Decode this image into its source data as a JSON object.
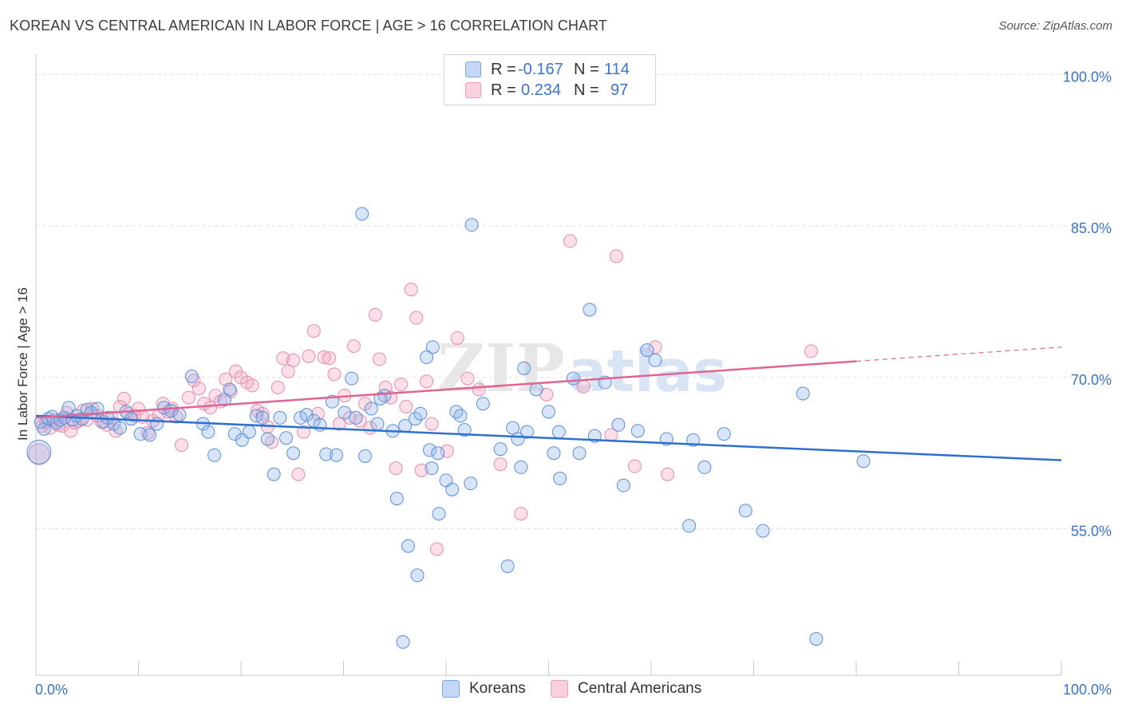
{
  "header": {
    "title": "KOREAN VS CENTRAL AMERICAN IN LABOR FORCE | AGE > 16 CORRELATION CHART",
    "source": "Source: ZipAtlas.com"
  },
  "watermark": {
    "text_zip": "ZIP",
    "text_atlas": "atlas"
  },
  "legend": {
    "items": [
      {
        "r_label": "R =",
        "r_value": "-0.167",
        "n_label": "N =",
        "n_value": "114",
        "color": "#8fb4ec"
      },
      {
        "r_label": "R =",
        "r_value": "0.234",
        "n_label": "N =",
        "n_value": "97",
        "color": "#f4a7bf"
      }
    ]
  },
  "bottom_legend": {
    "koreans": "Koreans",
    "central_americans": "Central Americans"
  },
  "axes": {
    "ylabel": "In Labor Force | Age > 16",
    "x_min_label": "0.0%",
    "x_max_label": "100.0%",
    "y_tick_labels": [
      "100.0%",
      "85.0%",
      "70.0%",
      "55.0%"
    ]
  },
  "chart_data": {
    "type": "scatter",
    "title": "KOREAN VS CENTRAL AMERICAN IN LABOR FORCE | AGE > 16 CORRELATION CHART",
    "xlabel": "",
    "ylabel": "In Labor Force | Age > 16",
    "xlim": [
      0,
      100
    ],
    "ylim": [
      40.5,
      102
    ],
    "y_ticks": [
      55,
      70,
      85,
      100
    ],
    "x_ticks": [
      0,
      10,
      20,
      30,
      40,
      50,
      60,
      70,
      80,
      90,
      100
    ],
    "grid": "horizontal dashed",
    "legend_position": "top-center",
    "series": [
      {
        "name": "Koreans",
        "color": "#8fb4ec",
        "stroke": "#5b8fdb",
        "line_color": "#2f6fcf",
        "R": -0.167,
        "N": 114,
        "trend": {
          "x": [
            0,
            100
          ],
          "y": [
            66.2,
            61.8
          ],
          "dashed_from": null
        },
        "points": [
          [
            0.5,
            65.6
          ],
          [
            0.8,
            64.9
          ],
          [
            1.2,
            65.9
          ],
          [
            1.6,
            66.1
          ],
          [
            2.0,
            65.5
          ],
          [
            2.4,
            65.8
          ],
          [
            2.8,
            66.0
          ],
          [
            3.2,
            67.0
          ],
          [
            3.6,
            65.8
          ],
          [
            4.0,
            66.2
          ],
          [
            4.5,
            65.9
          ],
          [
            5.0,
            66.8
          ],
          [
            5.4,
            66.5
          ],
          [
            6.0,
            66.9
          ],
          [
            6.6,
            65.6
          ],
          [
            7.0,
            66.0
          ],
          [
            7.6,
            65.4
          ],
          [
            8.2,
            65.0
          ],
          [
            8.8,
            66.6
          ],
          [
            9.3,
            65.9
          ],
          [
            10.2,
            64.4
          ],
          [
            11.1,
            64.3
          ],
          [
            11.8,
            65.4
          ],
          [
            12.5,
            67.0
          ],
          [
            13.2,
            66.7
          ],
          [
            14.0,
            66.3
          ],
          [
            15.2,
            70.1
          ],
          [
            16.3,
            65.4
          ],
          [
            16.8,
            64.6
          ],
          [
            17.4,
            62.3
          ],
          [
            18.4,
            67.8
          ],
          [
            18.9,
            68.8
          ],
          [
            19.4,
            64.4
          ],
          [
            20.1,
            63.8
          ],
          [
            20.8,
            64.6
          ],
          [
            21.5,
            66.2
          ],
          [
            22.1,
            66.0
          ],
          [
            22.6,
            63.9
          ],
          [
            23.2,
            60.4
          ],
          [
            23.8,
            66.0
          ],
          [
            24.4,
            64.0
          ],
          [
            25.1,
            62.5
          ],
          [
            25.8,
            66.0
          ],
          [
            26.4,
            66.3
          ],
          [
            27.1,
            65.7
          ],
          [
            27.7,
            65.3
          ],
          [
            28.3,
            62.4
          ],
          [
            28.9,
            67.6
          ],
          [
            29.3,
            62.3
          ],
          [
            30.1,
            66.5
          ],
          [
            30.8,
            69.9
          ],
          [
            31.2,
            66.0
          ],
          [
            32.1,
            62.2
          ],
          [
            32.7,
            66.9
          ],
          [
            33.3,
            65.4
          ],
          [
            31.8,
            86.2
          ],
          [
            34.0,
            68.2
          ],
          [
            33.6,
            67.9
          ],
          [
            34.8,
            64.7
          ],
          [
            35.2,
            58.0
          ],
          [
            36.0,
            65.2
          ],
          [
            37.0,
            65.9
          ],
          [
            37.5,
            66.4
          ],
          [
            36.3,
            53.3
          ],
          [
            35.8,
            43.8
          ],
          [
            37.2,
            50.4
          ],
          [
            38.7,
            73.0
          ],
          [
            38.1,
            72.0
          ],
          [
            38.4,
            62.8
          ],
          [
            39.2,
            62.5
          ],
          [
            38.6,
            61.0
          ],
          [
            39.3,
            56.5
          ],
          [
            40.0,
            59.8
          ],
          [
            40.6,
            58.9
          ],
          [
            41.0,
            66.6
          ],
          [
            41.4,
            66.2
          ],
          [
            41.8,
            64.8
          ],
          [
            42.4,
            59.5
          ],
          [
            42.5,
            85.1
          ],
          [
            43.6,
            67.4
          ],
          [
            45.3,
            62.9
          ],
          [
            46.0,
            51.3
          ],
          [
            46.5,
            65.0
          ],
          [
            47.0,
            63.9
          ],
          [
            47.9,
            64.6
          ],
          [
            47.3,
            61.1
          ],
          [
            47.6,
            70.9
          ],
          [
            48.8,
            68.8
          ],
          [
            50.5,
            62.5
          ],
          [
            50.0,
            66.6
          ],
          [
            51.0,
            64.6
          ],
          [
            51.1,
            60.0
          ],
          [
            52.4,
            69.9
          ],
          [
            53.0,
            62.5
          ],
          [
            54.0,
            76.7
          ],
          [
            54.5,
            64.2
          ],
          [
            55.5,
            69.5
          ],
          [
            56.8,
            65.3
          ],
          [
            57.3,
            59.3
          ],
          [
            58.7,
            64.7
          ],
          [
            59.6,
            72.7
          ],
          [
            60.4,
            71.7
          ],
          [
            61.5,
            63.9
          ],
          [
            63.7,
            55.3
          ],
          [
            64.1,
            63.8
          ],
          [
            65.2,
            61.1
          ],
          [
            67.1,
            64.4
          ],
          [
            69.2,
            56.8
          ],
          [
            70.9,
            54.8
          ],
          [
            74.8,
            68.4
          ],
          [
            76.1,
            44.1
          ],
          [
            80.7,
            61.7
          ]
        ]
      },
      {
        "name": "Central Americans",
        "color": "#f4a7bf",
        "stroke": "#e98aab",
        "line_color": "#e06592",
        "R": 0.234,
        "N": 97,
        "trend": {
          "x": [
            0,
            100
          ],
          "y": [
            66.0,
            73.0
          ],
          "dashed_from": 80
        },
        "points": [
          [
            0.6,
            65.2
          ],
          [
            1.0,
            65.6
          ],
          [
            1.4,
            65.0
          ],
          [
            1.8,
            65.8
          ],
          [
            2.2,
            65.3
          ],
          [
            2.6,
            65.2
          ],
          [
            3.0,
            66.5
          ],
          [
            3.4,
            64.7
          ],
          [
            3.8,
            65.5
          ],
          [
            4.2,
            65.7
          ],
          [
            4.6,
            66.7
          ],
          [
            5.0,
            65.8
          ],
          [
            5.5,
            66.9
          ],
          [
            6.0,
            66.2
          ],
          [
            6.4,
            65.6
          ],
          [
            6.9,
            65.3
          ],
          [
            7.4,
            66.0
          ],
          [
            7.8,
            64.7
          ],
          [
            8.2,
            67.1
          ],
          [
            8.6,
            67.9
          ],
          [
            9.0,
            66.4
          ],
          [
            9.6,
            66.2
          ],
          [
            10.0,
            66.9
          ],
          [
            10.4,
            66.1
          ],
          [
            10.9,
            64.5
          ],
          [
            11.4,
            65.7
          ],
          [
            12.0,
            66.3
          ],
          [
            12.4,
            67.4
          ],
          [
            12.9,
            66.6
          ],
          [
            13.3,
            66.9
          ],
          [
            13.7,
            66.1
          ],
          [
            14.2,
            63.3
          ],
          [
            14.9,
            68.0
          ],
          [
            15.4,
            69.7
          ],
          [
            15.9,
            68.9
          ],
          [
            16.4,
            67.4
          ],
          [
            17.0,
            67.0
          ],
          [
            17.5,
            68.2
          ],
          [
            18.0,
            67.6
          ],
          [
            18.5,
            69.8
          ],
          [
            19.0,
            68.6
          ],
          [
            19.5,
            70.6
          ],
          [
            20.0,
            70.0
          ],
          [
            20.6,
            69.5
          ],
          [
            21.1,
            69.2
          ],
          [
            21.6,
            66.7
          ],
          [
            22.1,
            66.4
          ],
          [
            22.6,
            65.1
          ],
          [
            23.0,
            63.6
          ],
          [
            23.6,
            69.0
          ],
          [
            24.1,
            71.9
          ],
          [
            24.6,
            70.6
          ],
          [
            25.1,
            71.7
          ],
          [
            25.6,
            60.4
          ],
          [
            26.1,
            64.6
          ],
          [
            26.6,
            72.1
          ],
          [
            27.1,
            74.6
          ],
          [
            27.5,
            66.4
          ],
          [
            28.1,
            72.0
          ],
          [
            28.6,
            71.9
          ],
          [
            29.1,
            70.3
          ],
          [
            29.6,
            65.4
          ],
          [
            30.1,
            68.2
          ],
          [
            30.6,
            66.0
          ],
          [
            31.0,
            73.1
          ],
          [
            31.6,
            65.7
          ],
          [
            32.1,
            67.4
          ],
          [
            32.6,
            65.0
          ],
          [
            33.1,
            76.2
          ],
          [
            33.5,
            71.8
          ],
          [
            34.1,
            69.0
          ],
          [
            34.6,
            68.0
          ],
          [
            35.1,
            61.0
          ],
          [
            35.6,
            69.3
          ],
          [
            36.1,
            67.1
          ],
          [
            36.6,
            78.7
          ],
          [
            37.1,
            75.9
          ],
          [
            37.6,
            60.8
          ],
          [
            38.1,
            69.6
          ],
          [
            38.6,
            65.4
          ],
          [
            39.1,
            53.0
          ],
          [
            40.1,
            62.7
          ],
          [
            41.1,
            73.9
          ],
          [
            42.1,
            69.9
          ],
          [
            43.2,
            68.8
          ],
          [
            45.3,
            61.4
          ],
          [
            47.3,
            56.5
          ],
          [
            49.8,
            68.3
          ],
          [
            52.1,
            83.5
          ],
          [
            53.4,
            69.1
          ],
          [
            56.1,
            64.3
          ],
          [
            56.6,
            82.0
          ],
          [
            58.4,
            61.2
          ],
          [
            60.4,
            73.0
          ],
          [
            61.6,
            60.4
          ],
          [
            75.6,
            72.6
          ]
        ]
      }
    ]
  }
}
